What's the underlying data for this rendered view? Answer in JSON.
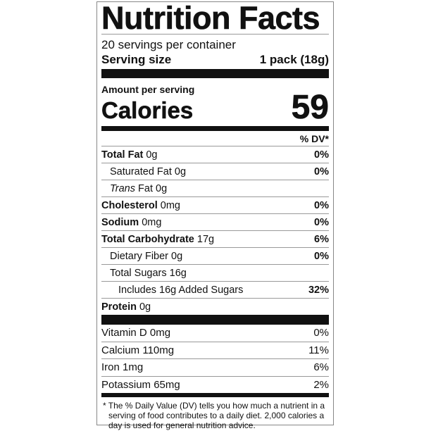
{
  "title": "Nutrition Facts",
  "servings_per_container": "20 servings per container",
  "serving_size": {
    "label": "Serving size",
    "value": "1 pack (18g)"
  },
  "amount_per_serving": "Amount per serving",
  "calories": {
    "label": "Calories",
    "value": "59"
  },
  "dv_header": "% DV*",
  "nutrients": [
    {
      "name": "Total Fat",
      "amount": " 0g",
      "dv": "0%",
      "bold": true,
      "indent": 0
    },
    {
      "name": "Saturated Fat 0g",
      "amount": "",
      "dv": "0%",
      "bold": false,
      "indent": 1
    },
    {
      "name": "Trans",
      "amount": " Fat 0g",
      "dv": "",
      "bold": false,
      "indent": 1,
      "italic": true
    },
    {
      "name": "Cholesterol",
      "amount": " 0mg",
      "dv": "0%",
      "bold": true,
      "indent": 0
    },
    {
      "name": "Sodium",
      "amount": " 0mg",
      "dv": "0%",
      "bold": true,
      "indent": 0
    },
    {
      "name": "Total Carbohydrate",
      "amount": " 17g",
      "dv": "6%",
      "bold": true,
      "indent": 0
    },
    {
      "name": "Dietary Fiber 0g",
      "amount": "",
      "dv": "0%",
      "bold": false,
      "indent": 1
    },
    {
      "name": "Total Sugars 16g",
      "amount": "",
      "dv": "",
      "bold": false,
      "indent": 1
    },
    {
      "name": "Includes 16g Added Sugars",
      "amount": "",
      "dv": "32%",
      "bold": false,
      "indent": 2
    },
    {
      "name": "Protein",
      "amount": " 0g",
      "dv": "",
      "bold": true,
      "indent": 0
    }
  ],
  "vitamins": [
    {
      "name": "Vitamin D 0mg",
      "dv": "0%"
    },
    {
      "name": "Calcium 110mg",
      "dv": "11%"
    },
    {
      "name": "Iron 1mg",
      "dv": "6%"
    },
    {
      "name": "Potassium 65mg",
      "dv": "2%"
    }
  ],
  "footnote": "* The % Daily Value (DV) tells you how much a nutrient in a serving of food contributes to a daily diet. 2,000 calories a day is used for general nutrition advice."
}
